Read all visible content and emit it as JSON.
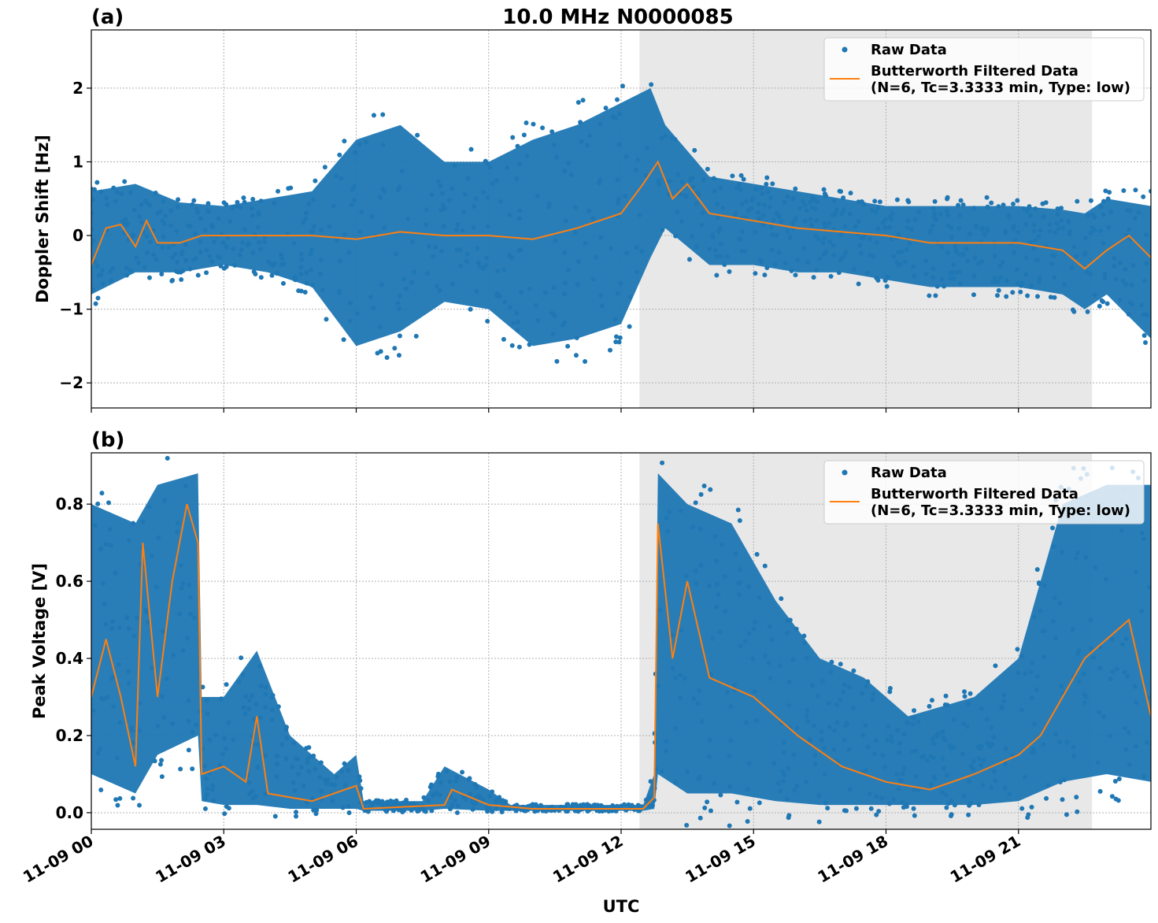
{
  "title": "10.0 MHz N0000085",
  "colors": {
    "raw": "#1f77b4",
    "filtered": "#ff7f0e",
    "shade": "#e8e8e8",
    "grid": "#b0b0b0"
  },
  "xlabel": "UTC",
  "x_ticks": [
    "11-09 00",
    "11-09 03",
    "11-09 06",
    "11-09 09",
    "11-09 12",
    "11-09 15",
    "11-09 18",
    "11-09 21"
  ],
  "legend": {
    "raw": "Raw Data",
    "filtered_line1": "Butterworth Filtered Data",
    "filtered_line2": "(N=6, Tc=3.3333 min, Type: low)",
    "placement": "top-right"
  },
  "chart_data": [
    {
      "type": "scatter+line",
      "panel_label": "(a)",
      "ylabel": "Doppler Shift [Hz]",
      "xlim": [
        "11-09 00:00",
        "11-10 00:00"
      ],
      "ylim": [
        -2.34,
        2.79
      ],
      "y_ticks": [
        "−2",
        "−1",
        "0",
        "1",
        "2"
      ],
      "y_tick_values": [
        -2,
        -1,
        0,
        1,
        2
      ],
      "grid": true,
      "shaded_interval": [
        "11-09 12:25",
        "11-09 22:40"
      ],
      "raw_envelope": {
        "x": [
          "00:00",
          "01:00",
          "02:00",
          "03:00",
          "04:00",
          "05:00",
          "06:00",
          "07:00",
          "08:00",
          "09:00",
          "10:00",
          "11:00",
          "12:00",
          "12:40",
          "13:00",
          "14:00",
          "15:00",
          "16:00",
          "17:00",
          "18:00",
          "19:00",
          "20:00",
          "21:00",
          "22:00",
          "22:30",
          "23:00",
          "24:00"
        ],
        "lower": [
          -0.8,
          -0.5,
          -0.5,
          -0.4,
          -0.5,
          -0.7,
          -1.5,
          -1.3,
          -0.9,
          -1.0,
          -1.5,
          -1.4,
          -1.2,
          -0.3,
          0.1,
          -0.4,
          -0.4,
          -0.5,
          -0.5,
          -0.6,
          -0.7,
          -0.7,
          -0.7,
          -0.8,
          -1.0,
          -0.8,
          -1.4
        ],
        "upper": [
          0.6,
          0.7,
          0.45,
          0.4,
          0.5,
          0.6,
          1.3,
          1.5,
          1.0,
          1.0,
          1.3,
          1.5,
          1.8,
          2.0,
          1.5,
          0.8,
          0.7,
          0.6,
          0.5,
          0.4,
          0.4,
          0.4,
          0.4,
          0.35,
          0.3,
          0.5,
          0.4
        ]
      },
      "filtered": {
        "x": [
          "00:00",
          "00:20",
          "00:40",
          "01:00",
          "01:15",
          "01:30",
          "02:00",
          "02:30",
          "03:00",
          "04:00",
          "05:00",
          "06:00",
          "07:00",
          "08:00",
          "09:00",
          "10:00",
          "11:00",
          "12:00",
          "12:30",
          "12:50",
          "13:10",
          "13:30",
          "14:00",
          "15:00",
          "16:00",
          "17:00",
          "18:00",
          "19:00",
          "20:00",
          "21:00",
          "22:00",
          "22:30",
          "23:00",
          "23:30",
          "24:00"
        ],
        "y": [
          -0.4,
          0.1,
          0.15,
          -0.15,
          0.2,
          -0.1,
          -0.1,
          0.0,
          0.0,
          0.0,
          0.0,
          -0.05,
          0.05,
          0.0,
          0.0,
          -0.05,
          0.1,
          0.3,
          0.7,
          1.0,
          0.5,
          0.7,
          0.3,
          0.2,
          0.1,
          0.05,
          0.0,
          -0.1,
          -0.1,
          -0.1,
          -0.2,
          -0.45,
          -0.2,
          0.0,
          -0.3
        ]
      }
    },
    {
      "type": "scatter+line",
      "panel_label": "(b)",
      "ylabel": "Peak Voltage [V]",
      "xlim": [
        "11-09 00:00",
        "11-10 00:00"
      ],
      "ylim": [
        -0.043,
        0.933
      ],
      "y_ticks": [
        "0.0",
        "0.2",
        "0.4",
        "0.6",
        "0.8"
      ],
      "y_tick_values": [
        0,
        0.2,
        0.4,
        0.6,
        0.8
      ],
      "grid": true,
      "shaded_interval": [
        "11-09 12:25",
        "11-09 22:40"
      ],
      "raw_envelope": {
        "x": [
          "00:00",
          "01:00",
          "01:30",
          "02:25",
          "02:30",
          "03:00",
          "03:45",
          "04:30",
          "05:30",
          "06:00",
          "06:10",
          "07:30",
          "08:00",
          "09:00",
          "09:30",
          "12:30",
          "12:45",
          "12:50",
          "13:30",
          "14:30",
          "15:30",
          "16:30",
          "17:30",
          "18:30",
          "20:00",
          "21:00",
          "22:00",
          "23:00",
          "24:00"
        ],
        "lower": [
          0.1,
          0.05,
          0.15,
          0.2,
          0.03,
          0.02,
          0.02,
          0.01,
          0.01,
          0.01,
          0.005,
          0.005,
          0.01,
          0.005,
          0.005,
          0.005,
          0.01,
          0.1,
          0.05,
          0.05,
          0.03,
          0.02,
          0.02,
          0.02,
          0.02,
          0.03,
          0.08,
          0.1,
          0.08
        ],
        "upper": [
          0.8,
          0.75,
          0.85,
          0.88,
          0.3,
          0.3,
          0.42,
          0.2,
          0.1,
          0.15,
          0.03,
          0.03,
          0.12,
          0.06,
          0.02,
          0.02,
          0.1,
          0.88,
          0.8,
          0.75,
          0.55,
          0.4,
          0.35,
          0.25,
          0.3,
          0.4,
          0.8,
          0.85,
          0.85
        ]
      },
      "filtered": {
        "x": [
          "00:00",
          "00:20",
          "00:40",
          "01:00",
          "01:10",
          "01:30",
          "01:50",
          "02:10",
          "02:25",
          "02:30",
          "03:00",
          "03:30",
          "03:45",
          "04:00",
          "05:00",
          "06:00",
          "06:10",
          "08:00",
          "08:10",
          "09:00",
          "10:00",
          "12:30",
          "12:45",
          "12:50",
          "13:10",
          "13:30",
          "14:00",
          "15:00",
          "16:00",
          "17:00",
          "18:00",
          "19:00",
          "20:00",
          "21:00",
          "21:30",
          "22:00",
          "22:30",
          "23:00",
          "23:30",
          "24:00"
        ],
        "y": [
          0.3,
          0.45,
          0.3,
          0.12,
          0.7,
          0.3,
          0.6,
          0.8,
          0.7,
          0.1,
          0.12,
          0.08,
          0.25,
          0.05,
          0.03,
          0.07,
          0.01,
          0.02,
          0.06,
          0.02,
          0.01,
          0.01,
          0.04,
          0.75,
          0.4,
          0.6,
          0.35,
          0.3,
          0.2,
          0.12,
          0.08,
          0.06,
          0.1,
          0.15,
          0.2,
          0.3,
          0.4,
          0.45,
          0.5,
          0.25
        ]
      }
    }
  ]
}
